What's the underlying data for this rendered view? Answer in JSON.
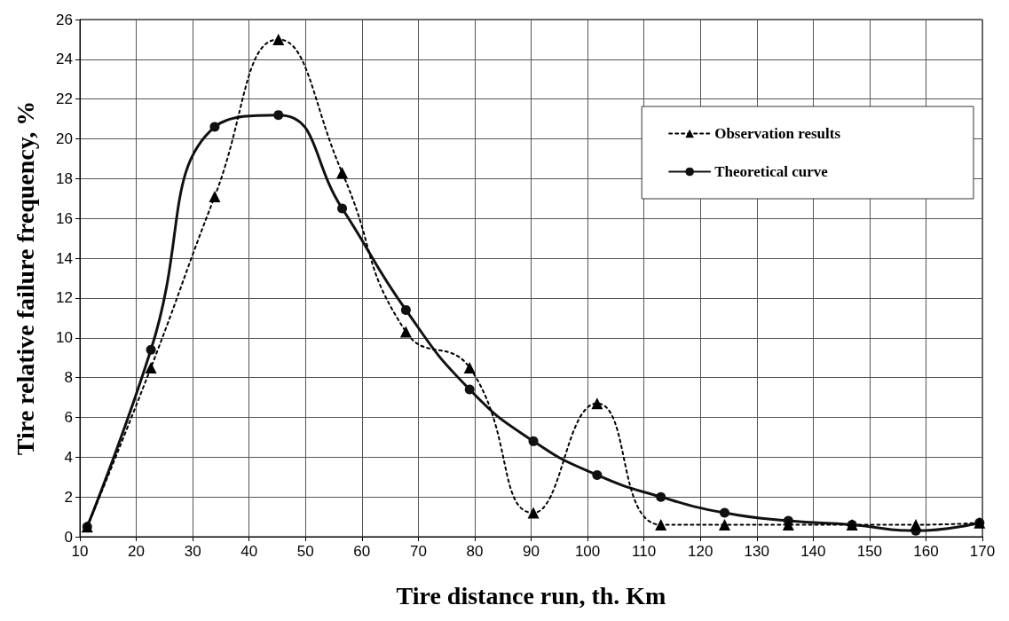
{
  "chart_data": {
    "type": "line",
    "xlabel": "Tire distance run, th. Km",
    "ylabel": "Tire relative failure frequency, %",
    "x": [
      11.3,
      22.6,
      33.9,
      45.2,
      56.5,
      67.8,
      79.1,
      90.4,
      101.7,
      113,
      124.3,
      135.6,
      146.9,
      158.2,
      169.5
    ],
    "series": [
      {
        "name": "Observation results",
        "color": "#000000",
        "marker": "triangle",
        "line_style": "dotted",
        "values": [
          0.5,
          8.5,
          17.1,
          25.0,
          18.3,
          10.3,
          8.5,
          1.2,
          6.7,
          0.6,
          0.6,
          0.6,
          0.6,
          0.6,
          0.7
        ]
      },
      {
        "name": "Theoretical curve",
        "color": "#111111",
        "marker": "circle",
        "line_style": "solid",
        "values": [
          0.5,
          9.4,
          20.6,
          21.2,
          16.5,
          11.4,
          7.4,
          4.8,
          3.1,
          2.0,
          1.2,
          0.8,
          0.6,
          0.3,
          0.7
        ]
      }
    ],
    "xlim": [
      10,
      170
    ],
    "xticks": [
      10,
      20,
      30,
      40,
      50,
      60,
      70,
      80,
      90,
      100,
      110,
      120,
      130,
      140,
      150,
      160,
      170
    ],
    "ylim": [
      0,
      26
    ],
    "yticks": [
      0,
      2,
      4,
      6,
      8,
      10,
      12,
      14,
      16,
      18,
      20,
      22,
      24,
      26
    ],
    "grid": true,
    "legend": "top right"
  }
}
